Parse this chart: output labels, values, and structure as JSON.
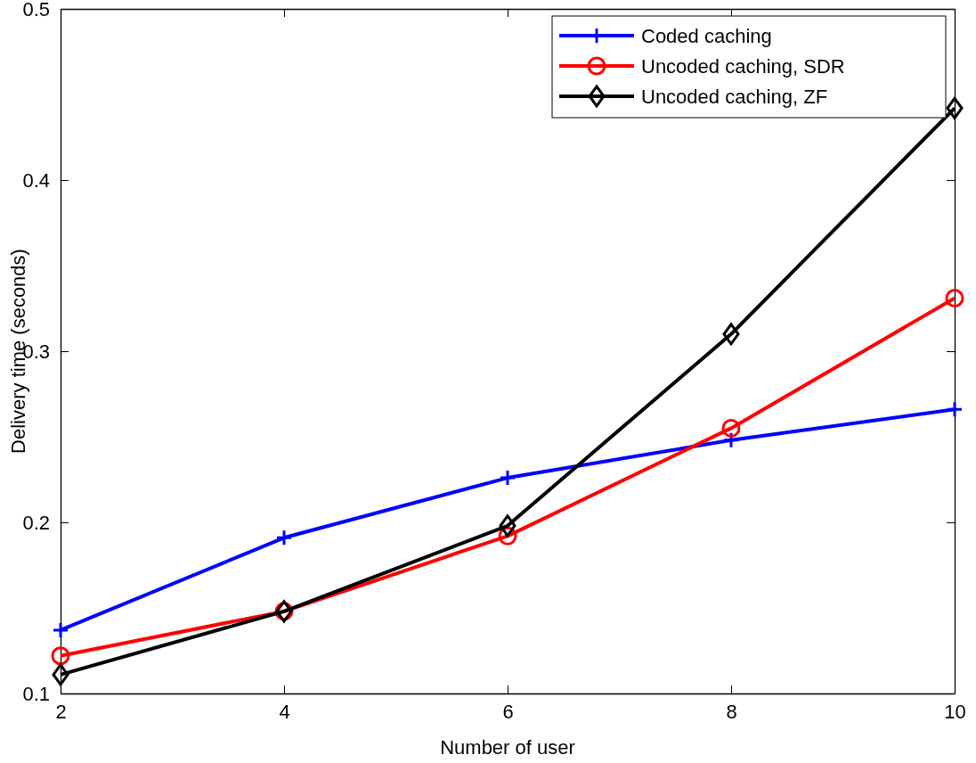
{
  "chart_data": {
    "type": "line",
    "xlabel": "Number of user",
    "ylabel": "Delivery time (seconds)",
    "x": [
      2,
      4,
      6,
      8,
      10
    ],
    "xlim": [
      2,
      10
    ],
    "xticks": [
      2,
      4,
      6,
      8,
      10
    ],
    "ylim": [
      0.1,
      0.5
    ],
    "yticks": [
      0.1,
      0.2,
      0.3,
      0.4,
      0.5
    ],
    "grid": false,
    "legend": "top right",
    "line_style": "solid",
    "series": [
      {
        "name": "Coded caching",
        "color": "#0000ff",
        "marker": "cross",
        "values": [
          0.137,
          0.191,
          0.226,
          0.248,
          0.266
        ]
      },
      {
        "name": "Uncoded caching, SDR",
        "color": "#ff0000",
        "marker": "circle",
        "values": [
          0.122,
          0.148,
          0.192,
          0.255,
          0.331
        ]
      },
      {
        "name": "Uncoded caching, ZF",
        "color": "#000000",
        "marker": "diamond",
        "values": [
          0.111,
          0.148,
          0.198,
          0.31,
          0.442
        ]
      }
    ]
  }
}
